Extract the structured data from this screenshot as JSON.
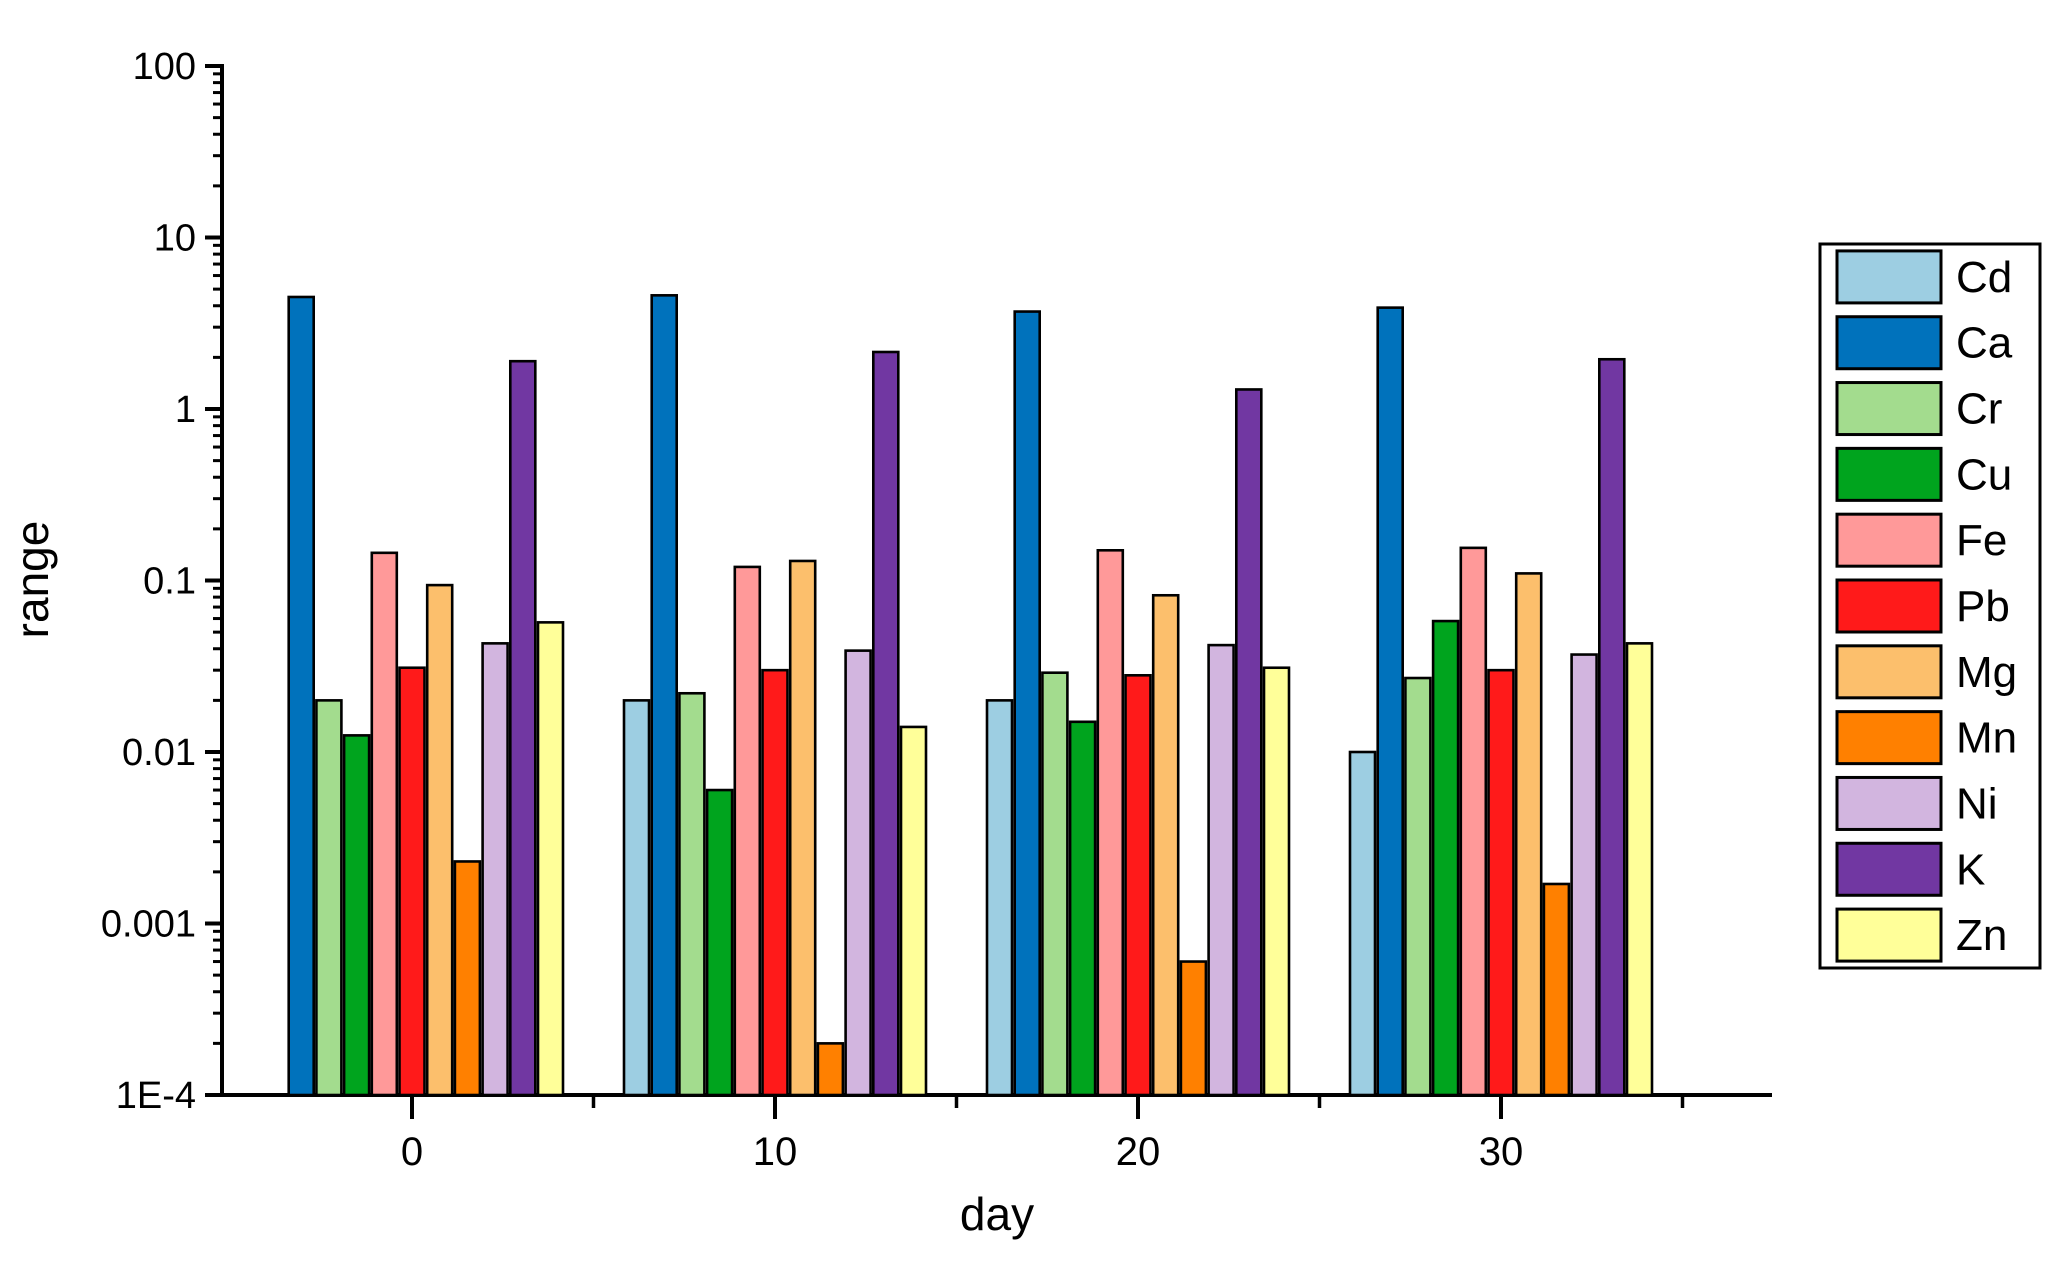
{
  "chart_data": {
    "type": "bar",
    "scale": "log",
    "title": "",
    "xlabel": "day",
    "ylabel": "range",
    "categories": [
      0,
      10,
      20,
      30
    ],
    "x_tick_labels": [
      "0",
      "10",
      "20",
      "30"
    ],
    "x_minor_ticks": [
      5,
      15,
      25,
      35
    ],
    "ylim": [
      0.0001,
      100
    ],
    "y_ticks": [
      {
        "value": 100,
        "label": "100"
      },
      {
        "value": 10,
        "label": "10"
      },
      {
        "value": 1,
        "label": "1"
      },
      {
        "value": 0.1,
        "label": "0.1"
      },
      {
        "value": 0.01,
        "label": "0.01"
      },
      {
        "value": 0.001,
        "label": "0.001"
      },
      {
        "value": 0.0001,
        "label": "1E-4"
      }
    ],
    "grid": false,
    "legend_position": "right",
    "bar_outline_color": "#000000",
    "series": [
      {
        "name": "Cd",
        "color": "#9DCEE2",
        "values": [
          null,
          0.02,
          0.02,
          0.01
        ]
      },
      {
        "name": "Ca",
        "color": "#0072BC",
        "values": [
          4.5,
          4.6,
          3.7,
          3.9
        ]
      },
      {
        "name": "Cr",
        "color": "#A3DC8E",
        "values": [
          0.02,
          0.022,
          0.029,
          0.027
        ]
      },
      {
        "name": "Cu",
        "color": "#00A41E",
        "values": [
          0.0125,
          0.006,
          0.015,
          0.058
        ]
      },
      {
        "name": "Fe",
        "color": "#FF9999",
        "values": [
          0.145,
          0.12,
          0.15,
          0.155
        ]
      },
      {
        "name": "Pb",
        "color": "#FF1A1A",
        "values": [
          0.031,
          0.03,
          0.028,
          0.03
        ]
      },
      {
        "name": "Mg",
        "color": "#FCBF6C",
        "values": [
          0.094,
          0.13,
          0.082,
          0.11
        ]
      },
      {
        "name": "Mn",
        "color": "#FF8000",
        "values": [
          0.0023,
          0.0002,
          0.0006,
          0.0017
        ]
      },
      {
        "name": "Ni",
        "color": "#D2B5DF",
        "values": [
          0.043,
          0.039,
          0.042,
          0.037
        ]
      },
      {
        "name": "K",
        "color": "#7137A2",
        "values": [
          1.9,
          2.15,
          1.3,
          1.95
        ]
      },
      {
        "name": "Zn",
        "color": "#FFFF99",
        "values": [
          0.057,
          0.014,
          0.031,
          0.043
        ]
      }
    ]
  }
}
